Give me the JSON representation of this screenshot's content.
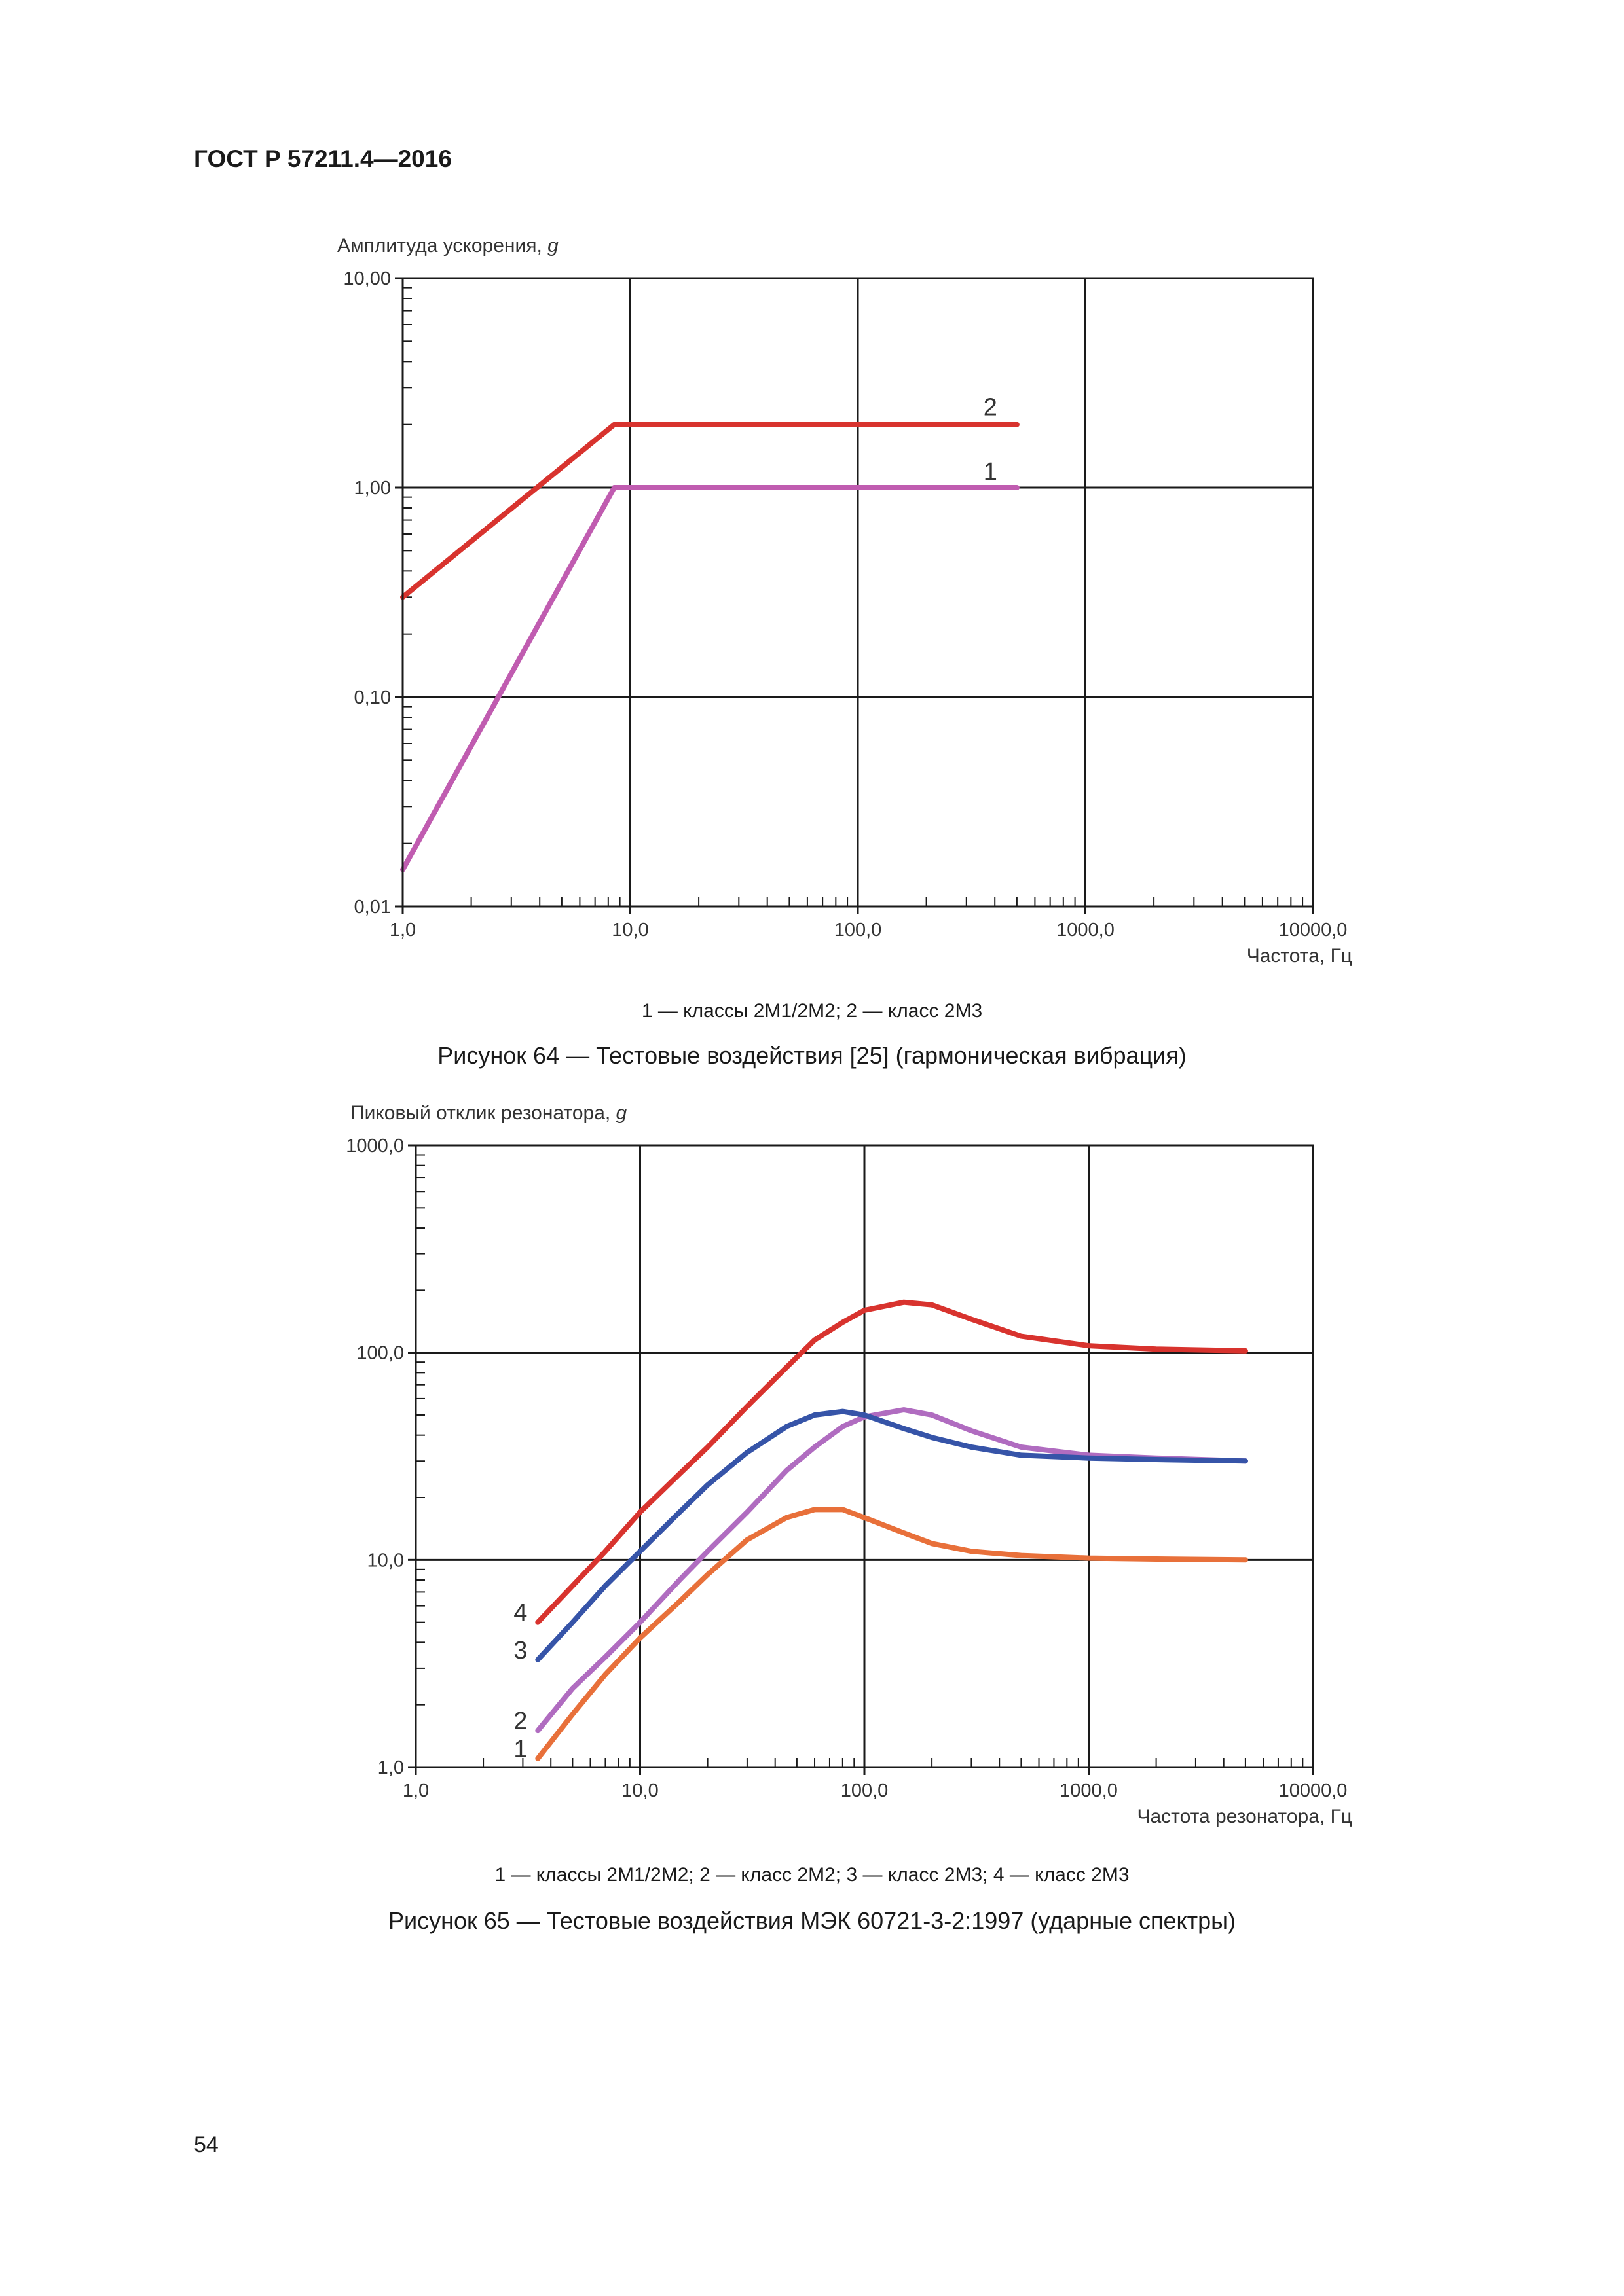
{
  "document": {
    "header": "ГОСТ Р 57211.4—2016",
    "page_number": "54"
  },
  "figure64": {
    "legend": "1 — классы 2М1/2М2; 2 — класс 2М3",
    "caption": "Рисунок 64 — Тестовые воздействия [25] (гармоническая вибрация)"
  },
  "figure65": {
    "legend": "1 — классы 2М1/2М2; 2 — класс 2М2; 3 — класс 2М3; 4 — класс 2М3",
    "caption": "Рисунок 65 — Тестовые воздействия МЭК 60721-3-2:1997 (ударные спектры)"
  },
  "chart_data": [
    {
      "type": "line",
      "ylabel": "Амплитуда ускорения, g",
      "xlabel": "Частота, Гц",
      "xscale": "log",
      "yscale": "log",
      "xlim": [
        1,
        10000
      ],
      "ylim": [
        0.01,
        10
      ],
      "xticks": [
        1,
        10,
        100,
        1000,
        10000
      ],
      "xtick_labels": [
        "1,0",
        "10,0",
        "100,0",
        "1000,0",
        "10000,0"
      ],
      "yticks": [
        0.01,
        0.1,
        1,
        10
      ],
      "ytick_labels": [
        "0,01",
        "0,10",
        "1,00",
        "10,00"
      ],
      "grid": true,
      "series": [
        {
          "name": "1",
          "color": "#c05cb0",
          "x": [
            1,
            8.5,
            500
          ],
          "y": [
            0.015,
            1.0,
            1.0
          ]
        },
        {
          "name": "2",
          "color": "#d8332e",
          "x": [
            1,
            8.5,
            500
          ],
          "y": [
            0.3,
            2.0,
            2.0
          ]
        }
      ]
    },
    {
      "type": "line",
      "ylabel": "Пиковый отклик резонатора, g",
      "xlabel": "Частота резонатора, Гц",
      "xscale": "log",
      "yscale": "log",
      "xlim": [
        1,
        10000
      ],
      "ylim": [
        1,
        1000
      ],
      "xticks": [
        1,
        10,
        100,
        1000,
        10000
      ],
      "xtick_labels": [
        "1,0",
        "10,0",
        "100,0",
        "1000,0",
        "10000,0"
      ],
      "yticks": [
        1,
        10,
        100,
        1000
      ],
      "ytick_labels": [
        "1,0",
        "10,0",
        "100,0",
        "1000,0"
      ],
      "grid": true,
      "series": [
        {
          "name": "1",
          "color": "#e8703a",
          "x": [
            3.5,
            5,
            7,
            10,
            15,
            20,
            30,
            45,
            60,
            80,
            100,
            150,
            200,
            300,
            500,
            1000,
            2000,
            5000
          ],
          "y": [
            1.1,
            1.8,
            2.8,
            4.2,
            6.3,
            8.5,
            12.5,
            16,
            17.5,
            17.5,
            16,
            13.5,
            12,
            11,
            10.5,
            10.2,
            10.1,
            10
          ]
        },
        {
          "name": "2",
          "color": "#b06cc0",
          "x": [
            3.5,
            5,
            7,
            10,
            15,
            20,
            30,
            45,
            60,
            80,
            100,
            150,
            200,
            300,
            500,
            1000,
            2000,
            5000
          ],
          "y": [
            1.5,
            2.4,
            3.4,
            5.0,
            8.0,
            11,
            17,
            27,
            35,
            44,
            49,
            53,
            50,
            42,
            35,
            32,
            31,
            30
          ]
        },
        {
          "name": "3",
          "color": "#3654a8",
          "x": [
            3.5,
            5,
            7,
            10,
            15,
            20,
            30,
            45,
            60,
            80,
            100,
            150,
            200,
            300,
            500,
            1000,
            2000,
            5000
          ],
          "y": [
            3.3,
            5.0,
            7.5,
            11,
            17,
            23,
            33,
            44,
            50,
            52,
            50,
            43,
            39,
            35,
            32,
            31,
            30.5,
            30
          ]
        },
        {
          "name": "4",
          "color": "#d8332e",
          "x": [
            3.5,
            5,
            7,
            10,
            15,
            20,
            30,
            45,
            60,
            80,
            100,
            150,
            200,
            300,
            500,
            1000,
            2000,
            5000
          ],
          "y": [
            5.0,
            7.5,
            11,
            17,
            26,
            35,
            55,
            85,
            115,
            140,
            160,
            175,
            170,
            145,
            120,
            108,
            104,
            102
          ]
        }
      ]
    }
  ]
}
